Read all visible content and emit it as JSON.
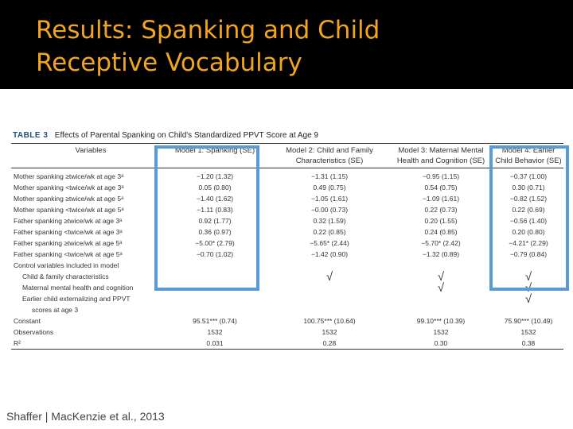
{
  "title": {
    "line1": "Results: Spanking and Child",
    "line2": "Receptive Vocabulary"
  },
  "table": {
    "caption_tag": "TABLE 3",
    "caption_text": "Effects of Parental Spanking on Child's Standardized PPVT Score at Age 9",
    "headers": {
      "variables": "Variables",
      "model1": "Model 1: Spanking (SE)",
      "model2_a": "Model 2: Child and Family",
      "model2_b": "Characteristics (SE)",
      "model3_a": "Model 3: Maternal Mental",
      "model3_b": "Health and Cognition (SE)",
      "model4_a": "Model 4: Earlier",
      "model4_b": "Child Behavior (SE)"
    },
    "rows": [
      {
        "label": "Mother spanking ≥twice/wk at age 3ᵃ",
        "m1": "−1.20 (1.32)",
        "m2": "−1.31 (1.15)",
        "m3": "−0.95 (1.15)",
        "m4": "−0.37 (1.00)"
      },
      {
        "label": "Mother spanking <twice/wk at age 3ᵃ",
        "m1": "0.05 (0.80)",
        "m2": "0.49 (0.75)",
        "m3": "0.54 (0.75)",
        "m4": "0.30 (0.71)"
      },
      {
        "label": "Mother spanking ≥twice/wk at age 5ᵃ",
        "m1": "−1.40 (1.62)",
        "m2": "−1.05 (1.61)",
        "m3": "−1.09 (1.61)",
        "m4": "−0.82 (1.52)"
      },
      {
        "label": "Mother spanking <twice/wk at age 5ᵃ",
        "m1": "−1.11 (0.83)",
        "m2": "−0.00 (0.73)",
        "m3": "0.22 (0.73)",
        "m4": "0.22 (0.69)"
      },
      {
        "label": "Father spanking ≥twice/wk at age 3ᵃ",
        "m1": "0.92 (1.77)",
        "m2": "0.32 (1.59)",
        "m3": "0.20 (1.55)",
        "m4": "−0.56 (1.40)"
      },
      {
        "label": "Father spanking <twice/wk at age 3ᵃ",
        "m1": "0.36 (0.97)",
        "m2": "0.22 (0.85)",
        "m3": "0.24 (0.85)",
        "m4": "0.20 (0.80)"
      },
      {
        "label": "Father spanking ≥twice/wk at age 5ᵃ",
        "m1": "−5.00* (2.79)",
        "m2": "−5.65* (2.44)",
        "m3": "−5.70* (2.42)",
        "m4": "−4.21* (2.29)"
      },
      {
        "label": "Father spanking <twice/wk at age 5ᵃ",
        "m1": "−0.70 (1.02)",
        "m2": "−1.42 (0.90)",
        "m3": "−1.32 (0.89)",
        "m4": "−0.79 (0.84)"
      }
    ],
    "controls_label": "Control variables included in model",
    "controls": [
      {
        "label": "Child & family characteristics",
        "m2": "√",
        "m3": "√",
        "m4": "√"
      },
      {
        "label": "Maternal mental health and cognition",
        "m2": "",
        "m3": "√",
        "m4": "√"
      },
      {
        "label": "Earlier child externalizing and PPVT",
        "m2": "",
        "m3": "",
        "m4": "√"
      }
    ],
    "controls_cont": "scores at age 3",
    "stats": [
      {
        "label": "Constant",
        "m1": "95.51*** (0.74)",
        "m2": "100.75*** (10.64)",
        "m3": "99.10*** (10.39)",
        "m4": "75.90*** (10.49)"
      },
      {
        "label": "Observations",
        "m1": "1532",
        "m2": "1532",
        "m3": "1532",
        "m4": "1532"
      },
      {
        "label": "R²",
        "m1": "0.031",
        "m2": "0.28",
        "m3": "0.30",
        "m4": "0.38"
      }
    ]
  },
  "credit": "Shaffer | MacKenzie et al., 2013",
  "colors": {
    "title_band": "#000000",
    "title_text": "#f2a51e",
    "highlight": "#5b9bd5"
  }
}
